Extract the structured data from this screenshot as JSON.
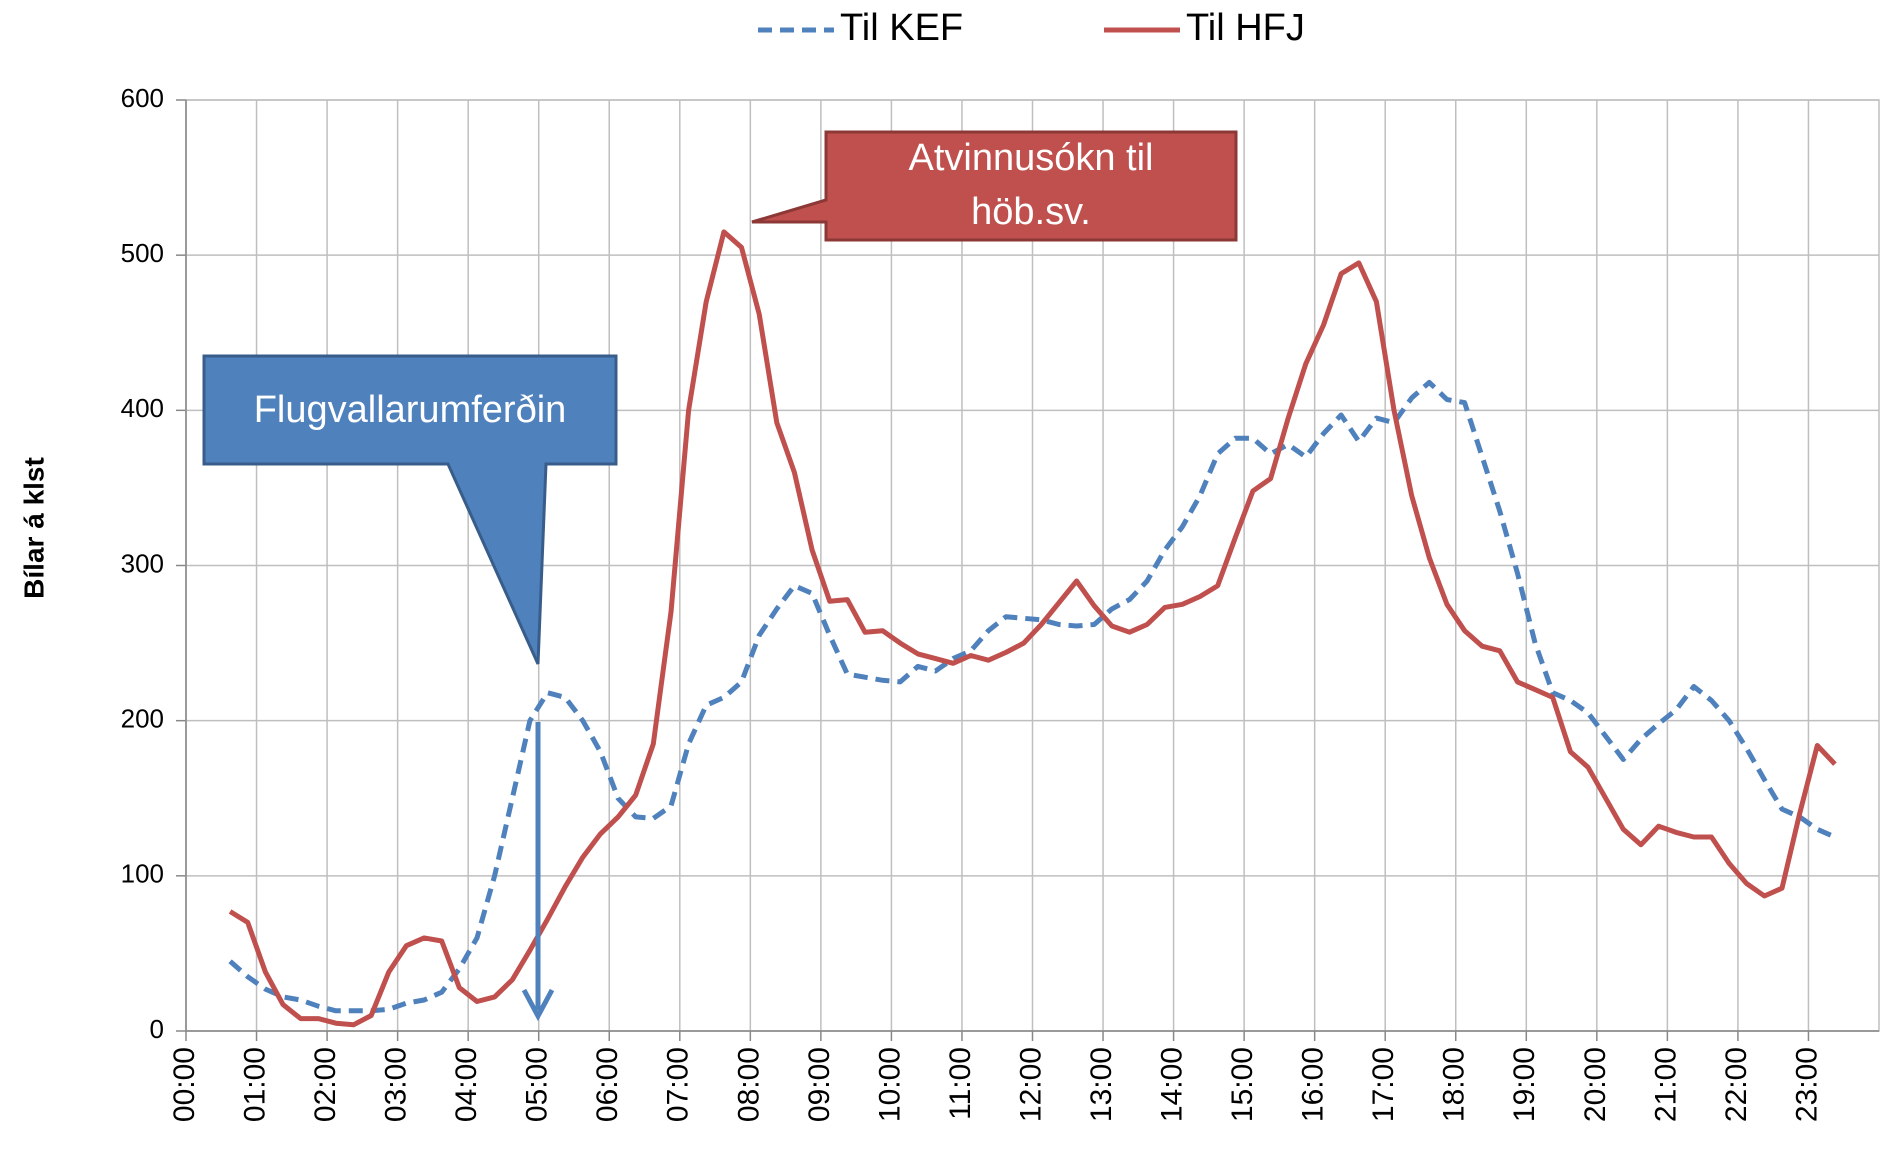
{
  "chart_data": {
    "type": "line",
    "y_label": "Bílar á klst",
    "xlim": [
      0,
      24
    ],
    "ylim": [
      0,
      600
    ],
    "yticks": [
      0,
      100,
      200,
      300,
      400,
      500,
      600
    ],
    "xticks": [
      {
        "value": 0,
        "label": "00:00"
      },
      {
        "value": 1,
        "label": "01:00"
      },
      {
        "value": 2,
        "label": "02:00"
      },
      {
        "value": 3,
        "label": "03:00"
      },
      {
        "value": 4,
        "label": "04:00"
      },
      {
        "value": 5,
        "label": "05:00"
      },
      {
        "value": 6,
        "label": "06:00"
      },
      {
        "value": 7,
        "label": "07:00"
      },
      {
        "value": 8,
        "label": "08:00"
      },
      {
        "value": 9,
        "label": "09:00"
      },
      {
        "value": 10,
        "label": "10:00"
      },
      {
        "value": 11,
        "label": "11:00"
      },
      {
        "value": 12,
        "label": "12:00"
      },
      {
        "value": 13,
        "label": "13:00"
      },
      {
        "value": 14,
        "label": "14:00"
      },
      {
        "value": 15,
        "label": "15:00"
      },
      {
        "value": 16,
        "label": "16:00"
      },
      {
        "value": 17,
        "label": "17:00"
      },
      {
        "value": 18,
        "label": "18:00"
      },
      {
        "value": 19,
        "label": "19:00"
      },
      {
        "value": 20,
        "label": "20:00"
      },
      {
        "value": 21,
        "label": "21:00"
      },
      {
        "value": 22,
        "label": "22:00"
      },
      {
        "value": 23,
        "label": "23:00"
      }
    ],
    "grid": true,
    "legend": "top",
    "x": [
      0.625,
      0.875,
      1.125,
      1.375,
      1.625,
      1.875,
      2.125,
      2.375,
      2.625,
      2.875,
      3.125,
      3.375,
      3.625,
      3.875,
      4.125,
      4.375,
      4.625,
      4.875,
      5.125,
      5.375,
      5.625,
      5.875,
      6.125,
      6.375,
      6.625,
      6.875,
      7.125,
      7.375,
      7.625,
      7.875,
      8.125,
      8.375,
      8.625,
      8.875,
      9.125,
      9.375,
      9.625,
      9.875,
      10.125,
      10.375,
      10.625,
      10.875,
      11.125,
      11.375,
      11.625,
      11.875,
      12.125,
      12.375,
      12.625,
      12.875,
      13.125,
      13.375,
      13.625,
      13.875,
      14.125,
      14.375,
      14.625,
      14.875,
      15.125,
      15.375,
      15.625,
      15.875,
      16.125,
      16.375,
      16.625,
      16.875,
      17.125,
      17.375,
      17.625,
      17.875,
      18.125,
      18.375,
      18.625,
      18.875,
      19.125,
      19.375,
      19.625,
      19.875,
      20.125,
      20.375,
      20.625,
      20.875,
      21.125,
      21.375,
      21.625,
      21.875,
      22.125,
      22.375,
      22.625,
      22.875,
      23.125,
      23.375
    ],
    "series": [
      {
        "name": "Til KEF",
        "color": "#4f81bd",
        "dashed": true,
        "values": [
          45,
          35,
          27,
          22,
          20,
          16,
          13,
          13,
          13,
          14,
          18,
          20,
          25,
          40,
          60,
          100,
          150,
          200,
          218,
          215,
          200,
          180,
          150,
          138,
          137,
          145,
          185,
          210,
          215,
          225,
          255,
          272,
          287,
          282,
          255,
          230,
          228,
          226,
          225,
          235,
          232,
          240,
          245,
          258,
          267,
          266,
          265,
          262,
          261,
          262,
          272,
          278,
          290,
          310,
          325,
          345,
          372,
          382,
          382,
          372,
          378,
          370,
          385,
          397,
          380,
          395,
          392,
          408,
          418,
          407,
          405,
          370,
          335,
          295,
          250,
          218,
          213,
          205,
          190,
          175,
          188,
          198,
          207,
          222,
          213,
          200,
          182,
          162,
          143,
          138,
          130,
          125
        ]
      },
      {
        "name": "Til HFJ",
        "color": "#c0504d",
        "dashed": false,
        "values": [
          77,
          70,
          38,
          17,
          8,
          8,
          5,
          4,
          10,
          38,
          55,
          60,
          58,
          28,
          19,
          22,
          33,
          52,
          72,
          93,
          112,
          127,
          138,
          152,
          185,
          270,
          400,
          470,
          515,
          505,
          462,
          392,
          360,
          310,
          277,
          278,
          257,
          258,
          250,
          243,
          240,
          237,
          242,
          239,
          244,
          250,
          262,
          276,
          290,
          274,
          261,
          257,
          262,
          273,
          275,
          280,
          287,
          318,
          348,
          356,
          395,
          430,
          455,
          488,
          495,
          470,
          400,
          345,
          305,
          275,
          258,
          248,
          245,
          225,
          220,
          215,
          180,
          170,
          150,
          130,
          120,
          132,
          128,
          125,
          125,
          108,
          95,
          87,
          92,
          140,
          184,
          172
        ]
      }
    ],
    "annotations": [
      {
        "lines": [
          "Atvinnusókn til",
          "höb.sv."
        ]
      },
      {
        "lines": [
          "Flugvallarumferðin"
        ]
      }
    ]
  }
}
